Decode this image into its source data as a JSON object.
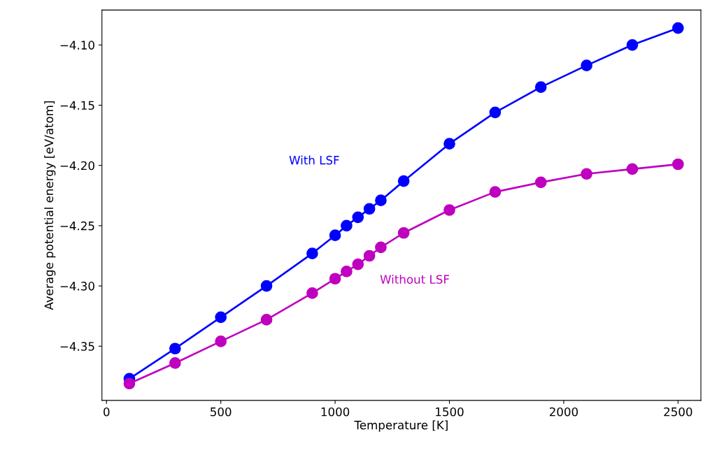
{
  "chart_data": {
    "type": "line",
    "xlabel": "Temperature [K]",
    "ylabel": "Average potential energy [eV/atom]",
    "x": [
      100,
      300,
      500,
      700,
      900,
      1000,
      1050,
      1100,
      1150,
      1200,
      1300,
      1500,
      1700,
      1900,
      2100,
      2300,
      2500
    ],
    "series": [
      {
        "name": "With LSF",
        "color": "#0000ff",
        "values": [
          -4.377,
          -4.352,
          -4.326,
          -4.3,
          -4.273,
          -4.258,
          -4.25,
          -4.243,
          -4.236,
          -4.229,
          -4.213,
          -4.182,
          -4.156,
          -4.135,
          -4.117,
          -4.1,
          -4.086
        ]
      },
      {
        "name": "Without LSF",
        "color": "#bf00bf",
        "values": [
          -4.381,
          -4.364,
          -4.346,
          -4.328,
          -4.306,
          -4.294,
          -4.288,
          -4.282,
          -4.275,
          -4.268,
          -4.256,
          -4.237,
          -4.222,
          -4.214,
          -4.207,
          -4.203,
          -4.199
        ]
      }
    ],
    "xlim": [
      -20,
      2600
    ],
    "xticks": [
      0,
      500,
      1000,
      1500,
      2000,
      2500
    ],
    "ylim": [
      -4.395,
      -4.071
    ],
    "yticks": [
      {
        "value": -4.35,
        "label": "−4.35"
      },
      {
        "value": -4.3,
        "label": "−4.30"
      },
      {
        "value": -4.25,
        "label": "−4.25"
      },
      {
        "value": -4.2,
        "label": "−4.20"
      },
      {
        "value": -4.15,
        "label": "−4.15"
      },
      {
        "value": -4.1,
        "label": "−4.10"
      }
    ],
    "marker": "circle",
    "line_style": "solid",
    "grid": false,
    "legend": false
  }
}
